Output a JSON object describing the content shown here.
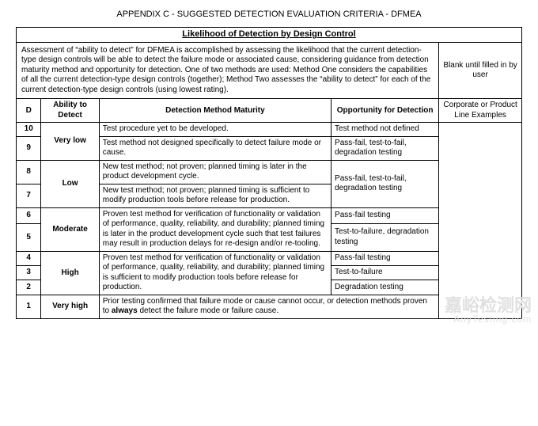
{
  "page": {
    "title": "APPENDIX C - SUGGESTED DETECTION EVALUATION CRITERIA - DFMEA",
    "section_title": "Likelihood of Detection by Design Control",
    "assessment_text": "Assessment of “ability to detect” for DFMEA is accomplished by assessing the likelihood that the current detection-type design controls will be able to detect the failure mode or associated cause, considering guidance from detection maturity method and opportunity for detection. One of two methods are used: Method One considers the capabilities of all the current detection-type design controls (together); Method Two assesses the “ability to detect” for each of the current detection-type design controls (using lowest rating).",
    "blank_text": "Blank until filled in by user"
  },
  "headers": {
    "d": "D",
    "ability": "Ability to Detect",
    "maturity": "Detection Method Maturity",
    "opportunity": "Opportunity for Detection",
    "examples": "Corporate or Product Line Examples"
  },
  "levels": {
    "very_low": "Very low",
    "low": "Low",
    "moderate": "Moderate",
    "high": "High",
    "very_high": "Very high"
  },
  "rows": {
    "r10": {
      "d": "10",
      "maturity": "Test procedure yet to be developed.",
      "opportunity": "Test method not defined"
    },
    "r9": {
      "d": "9",
      "maturity": "Test method not designed specifically to detect failure mode or cause.",
      "opportunity": "Pass-fail, test-to-fail, degradation testing"
    },
    "r8": {
      "d": "8",
      "maturity": "New test method; not proven; planned timing is later in the product development cycle."
    },
    "r7": {
      "d": "7",
      "maturity": "New test method; not proven; planned timing is sufficient to modify production tools before release for production."
    },
    "low_opportunity": "Pass-fail, test-to-fail, degradation testing",
    "r6": {
      "d": "6",
      "opportunity": "Pass-fail testing"
    },
    "moderate_maturity": "Proven test method for verification of functionality or validation of performance, quality, reliability, and durability; planned timing is later in the product development cycle such that test failures may result in production delays for re-design and/or re-tooling.",
    "r5": {
      "d": "5",
      "opportunity": "Test-to-failure, degradation testing"
    },
    "r4": {
      "d": "4",
      "opportunity": "Pass-fail testing"
    },
    "high_maturity": "Proven test method for verification of functionality or validation of performance, quality, reliability, and durability; planned timing is sufficient to modify production tools before release for production.",
    "r3": {
      "d": "3",
      "opportunity": "Test-to-failure"
    },
    "r2": {
      "d": "2",
      "opportunity": "Degradation testing"
    },
    "r1": {
      "d": "1",
      "text_before": "Prior testing confirmed that failure mode or cause cannot occur, or detection methods proven to ",
      "text_bold": "always",
      "text_after": " detect the failure mode or failure cause."
    }
  },
  "watermark": {
    "main": "嘉峪检测网",
    "sub": "AnyTesting.com"
  }
}
